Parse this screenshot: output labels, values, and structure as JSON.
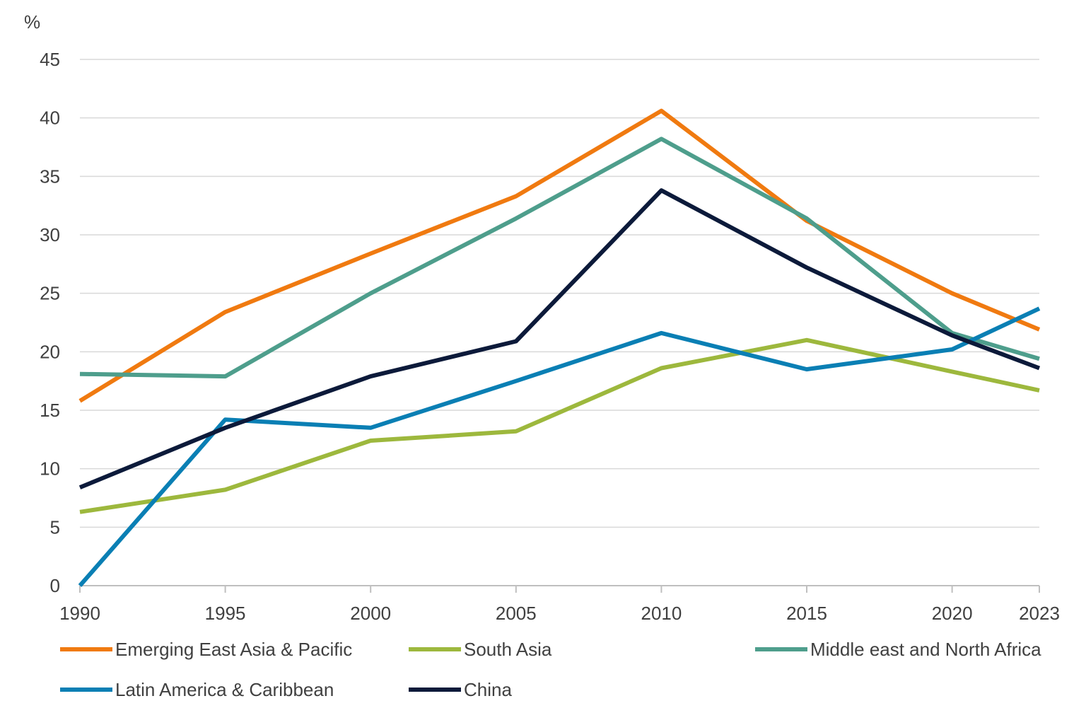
{
  "chart_data": {
    "type": "line",
    "title": "",
    "xlabel": "",
    "ylabel": "%",
    "ylim": [
      0,
      45
    ],
    "yticks": [
      0,
      5,
      10,
      15,
      20,
      25,
      30,
      35,
      40,
      45
    ],
    "categories": [
      "1990",
      "1995",
      "2000",
      "2005",
      "2010",
      "2015",
      "2020",
      "2023"
    ],
    "grid": true,
    "legend_position": "bottom",
    "series": [
      {
        "name": "Emerging East Asia & Pacific",
        "color": "#F07A10",
        "values": [
          15.8,
          23.4,
          28.4,
          33.3,
          40.6,
          31.2,
          25.0,
          21.9
        ]
      },
      {
        "name": "South Asia",
        "color": "#9DB83D",
        "values": [
          6.3,
          8.2,
          12.4,
          13.2,
          18.6,
          21.0,
          18.3,
          16.7
        ]
      },
      {
        "name": "Middle east and North Africa",
        "color": "#4E9E8C",
        "values": [
          18.1,
          17.9,
          25.0,
          31.4,
          38.2,
          31.4,
          21.6,
          19.4
        ]
      },
      {
        "name": "Latin America & Caribbean",
        "color": "#0A7FB4",
        "values": [
          0.0,
          14.2,
          13.5,
          17.5,
          21.6,
          18.5,
          20.2,
          23.7
        ]
      },
      {
        "name": "China",
        "color": "#0C1A3A",
        "values": [
          8.4,
          13.5,
          17.9,
          20.9,
          33.8,
          27.2,
          21.4,
          18.6
        ]
      }
    ]
  }
}
